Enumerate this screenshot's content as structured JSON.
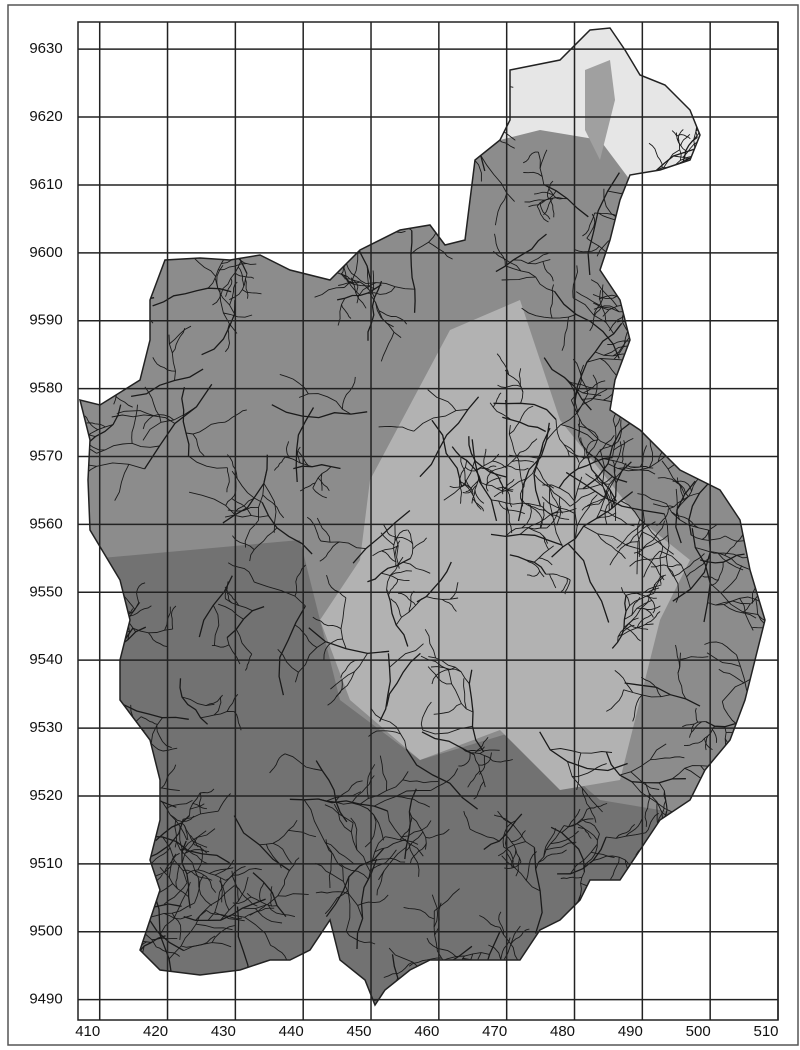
{
  "map": {
    "xlim": [
      406.8,
      510
    ],
    "ylim": [
      9487,
      9634
    ],
    "xticks": [
      410,
      420,
      430,
      440,
      450,
      460,
      470,
      480,
      490,
      500,
      510
    ],
    "yticks": [
      9490,
      9500,
      9510,
      9520,
      9530,
      9540,
      9550,
      9560,
      9570,
      9580,
      9590,
      9600,
      9610,
      9620,
      9630
    ]
  }
}
